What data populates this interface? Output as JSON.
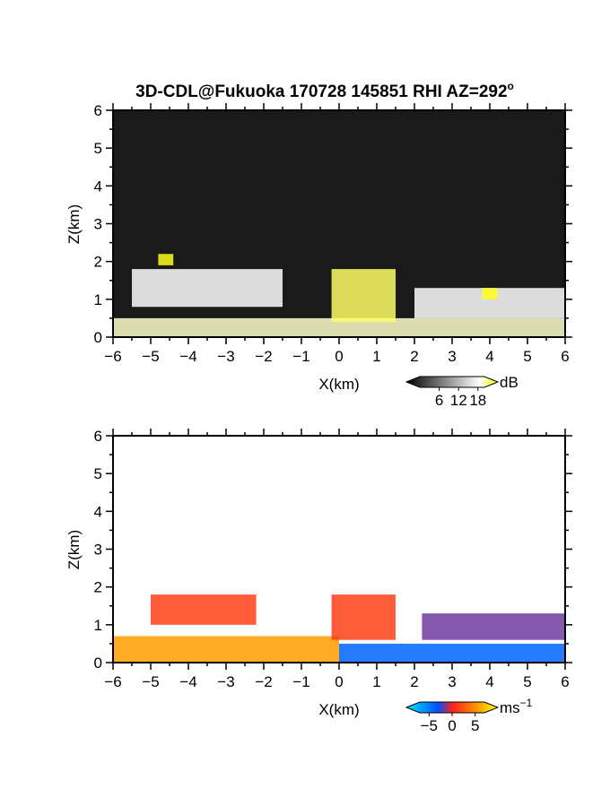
{
  "title_main": "3D-CDL@Fukuoka 170728 145851 RHI AZ=292",
  "title_sup": "o",
  "chart_data": [
    {
      "type": "heatmap",
      "quantity": "reflectivity",
      "xlabel": "X(km)",
      "ylabel": "Z(km)",
      "xlim": [
        -6,
        6
      ],
      "ylim": [
        0,
        6
      ],
      "xticks": [
        "−6",
        "−5",
        "−4",
        "−3",
        "−2",
        "−1",
        "0",
        "1",
        "2",
        "3",
        "4",
        "5",
        "6"
      ],
      "yticks": [
        "0",
        "1",
        "2",
        "3",
        "4",
        "5",
        "6"
      ],
      "colorbar": {
        "unit": "dB",
        "ticks": [
          "6",
          "12",
          "18"
        ],
        "tick_values": [
          6,
          12,
          18
        ],
        "range": [
          0,
          20
        ],
        "colors": [
          "#000000",
          "#ffffff",
          "#ffff00"
        ]
      },
      "features": [
        {
          "x": [
            -6,
            6
          ],
          "z": [
            0,
            0.5
          ],
          "level": 12
        },
        {
          "x": [
            -5.5,
            -1.5
          ],
          "z": [
            0.8,
            1.8
          ],
          "level": 10
        },
        {
          "x": [
            2.0,
            6.0
          ],
          "z": [
            0.5,
            1.3
          ],
          "level": 10
        },
        {
          "x": [
            -0.2,
            1.5
          ],
          "z": [
            0.4,
            1.8
          ],
          "level": 16
        },
        {
          "x": [
            -4.8,
            -4.4
          ],
          "z": [
            1.9,
            2.2
          ],
          "level": 19
        },
        {
          "x": [
            3.8,
            4.2
          ],
          "z": [
            1.0,
            1.3
          ],
          "level": 19
        }
      ]
    },
    {
      "type": "heatmap",
      "quantity": "doppler_velocity",
      "xlabel": "X(km)",
      "ylabel": "Z(km)",
      "xlim": [
        -6,
        6
      ],
      "ylim": [
        0,
        6
      ],
      "xticks": [
        "−6",
        "−5",
        "−4",
        "−3",
        "−2",
        "−1",
        "0",
        "1",
        "2",
        "3",
        "4",
        "5",
        "6"
      ],
      "yticks": [
        "0",
        "1",
        "2",
        "3",
        "4",
        "5",
        "6"
      ],
      "colorbar": {
        "unit": "ms",
        "unit_sup": "−1",
        "ticks": [
          "−5",
          "0",
          "5"
        ],
        "tick_values": [
          -5,
          0,
          5
        ],
        "range": [
          -7,
          7
        ],
        "colors": [
          "#00e5ff",
          "#0050ff",
          "#ff2020",
          "#ff8c00",
          "#ffff00"
        ]
      },
      "features": [
        {
          "x": [
            -6,
            0
          ],
          "z": [
            0,
            0.7
          ],
          "value": 4
        },
        {
          "x": [
            -5.0,
            -2.2
          ],
          "z": [
            1.0,
            1.8
          ],
          "value": 1
        },
        {
          "x": [
            -0.2,
            1.5
          ],
          "z": [
            0.6,
            1.8
          ],
          "value": 1
        },
        {
          "x": [
            0,
            6
          ],
          "z": [
            0,
            0.5
          ],
          "value": -4
        },
        {
          "x": [
            2.2,
            6.0
          ],
          "z": [
            0.6,
            1.3
          ],
          "value": -2
        }
      ]
    }
  ]
}
